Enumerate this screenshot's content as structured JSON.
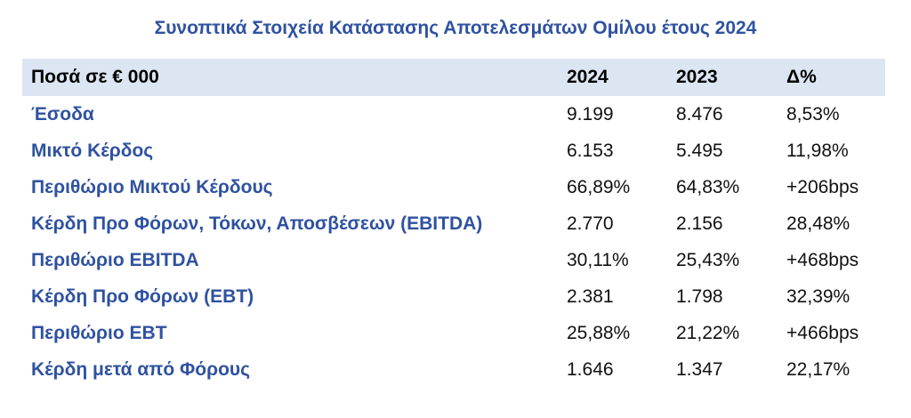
{
  "title": "Συνοπτικά Στοιχεία Κατάστασης Αποτελεσμάτων Ομίλου έτους 2024",
  "table": {
    "header": [
      "Ποσά σε € 000",
      "2024",
      "2023",
      "Δ%"
    ],
    "rows": [
      [
        "Έσοδα",
        "9.199",
        "8.476",
        "8,53%"
      ],
      [
        "Μικτό Κέρδος",
        "6.153",
        "5.495",
        "11,98%"
      ],
      [
        "Περιθώριο Μικτού Κέρδους",
        "66,89%",
        "64,83%",
        "+206bps"
      ],
      [
        "Κέρδη Προ Φόρων, Τόκων, Αποσβέσεων (EBITDA)",
        "2.770",
        "2.156",
        "28,48%"
      ],
      [
        "Περιθώριο EBITDA",
        "30,11%",
        "25,43%",
        "+468bps"
      ],
      [
        "Κέρδη Προ Φόρων (EBT)",
        "2.381",
        "1.798",
        "32,39%"
      ],
      [
        "Περιθώριο EBT",
        "25,88%",
        "21,22%",
        "+466bps"
      ],
      [
        "Κέρδη μετά από Φόρους",
        "1.646",
        "1.347",
        "22,17%"
      ]
    ]
  }
}
